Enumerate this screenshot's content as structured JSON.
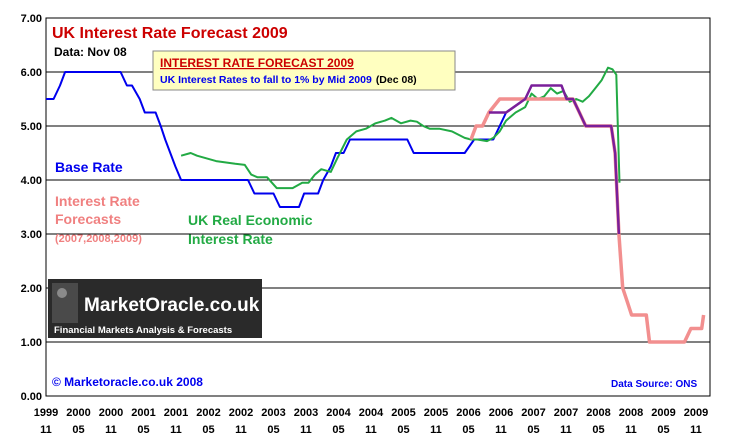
{
  "chart_data": {
    "type": "line",
    "title": "UK Interest Rate Forecast 2009",
    "data_date": "Data: Nov 08",
    "headline_box": {
      "title": "INTEREST RATE FORECAST 2009",
      "line_blue": "UK Interest Rates to fall to 1% by Mid 2009",
      "line_date": "(Dec 08)"
    },
    "ylim": [
      0,
      7
    ],
    "y_ticks": [
      "0.00",
      "1.00",
      "2.00",
      "3.00",
      "4.00",
      "5.00",
      "6.00",
      "7.00"
    ],
    "x_ticks": [
      {
        "year": "1999",
        "month": "11"
      },
      {
        "year": "2000",
        "month": "05"
      },
      {
        "year": "2000",
        "month": "11"
      },
      {
        "year": "2001",
        "month": "05"
      },
      {
        "year": "2001",
        "month": "11"
      },
      {
        "year": "2002",
        "month": "05"
      },
      {
        "year": "2002",
        "month": "11"
      },
      {
        "year": "2003",
        "month": "05"
      },
      {
        "year": "2003",
        "month": "11"
      },
      {
        "year": "2004",
        "month": "05"
      },
      {
        "year": "2004",
        "month": "11"
      },
      {
        "year": "2005",
        "month": "05"
      },
      {
        "year": "2005",
        "month": "11"
      },
      {
        "year": "2006",
        "month": "05"
      },
      {
        "year": "2006",
        "month": "11"
      },
      {
        "year": "2007",
        "month": "05"
      },
      {
        "year": "2007",
        "month": "11"
      },
      {
        "year": "2008",
        "month": "05"
      },
      {
        "year": "2008",
        "month": "11"
      },
      {
        "year": "2009",
        "month": "05"
      },
      {
        "year": "2009",
        "month": "11"
      }
    ],
    "legend": {
      "base_rate": "Base Rate",
      "forecast_l1": "Interest Rate",
      "forecast_l2": "Forecasts",
      "forecast_l3": "(2007,2008,2009)",
      "real_l1": "UK Real Economic",
      "real_l2": "Interest Rate"
    },
    "logo_text": "MarketOracle.co.uk",
    "logo_sub": "Financial Markets Analysis & Forecasts",
    "copyright": "© Marketoracle.co.uk 2008",
    "source": "Data Source: ONS",
    "colors": {
      "base_rate": "#0000ee",
      "forecast": "#f28f8f",
      "forecast_text": "#f08080",
      "real_rate": "#22aa44",
      "actual_overlap": "#7a1f9a",
      "title": "#cc0000",
      "plot_bg": "#ffffff",
      "outer_bg": "#ffffff",
      "headline_bg": "#ffffc0"
    },
    "series": [
      {
        "name": "Base Rate",
        "x": [
          1999.83,
          1999.95,
          2000.05,
          2000.13,
          2000.25,
          2000.45,
          2000.65,
          2000.85,
          2000.92,
          2001.0,
          2001.1,
          2001.18,
          2001.3,
          2001.38,
          2001.55,
          2001.63,
          2001.7,
          2001.78,
          2001.86,
          2001.95,
          2002.5,
          2003.0,
          2003.1,
          2003.4,
          2003.5,
          2003.8,
          2003.88,
          2004.1,
          2004.18,
          2004.3,
          2004.38,
          2004.5,
          2004.6,
          2005.5,
          2005.6,
          2006.4,
          2006.55,
          2006.85,
          2006.95,
          2007.05,
          2007.35,
          2007.45,
          2007.55,
          2007.92,
          2008.0,
          2008.1,
          2008.2,
          2008.3,
          2008.7,
          2008.76,
          2008.82
        ],
        "y": [
          5.5,
          5.5,
          5.75,
          6.0,
          6.0,
          6.0,
          6.0,
          6.0,
          6.0,
          6.0,
          5.75,
          5.75,
          5.5,
          5.25,
          5.25,
          5.0,
          4.75,
          4.5,
          4.25,
          4.0,
          4.0,
          4.0,
          3.75,
          3.75,
          3.5,
          3.5,
          3.75,
          3.75,
          4.0,
          4.25,
          4.5,
          4.5,
          4.75,
          4.75,
          4.5,
          4.5,
          4.75,
          4.75,
          5.0,
          5.25,
          5.5,
          5.75,
          5.75,
          5.75,
          5.5,
          5.5,
          5.25,
          5.0,
          5.0,
          4.5,
          3.0
        ]
      },
      {
        "name": "Interest Rate Forecasts",
        "x": [
          2006.5,
          2006.58,
          2006.68,
          2006.78,
          2006.95,
          2007.05,
          2007.25,
          2007.9,
          2008.1,
          2008.2,
          2008.3,
          2008.7,
          2008.76,
          2008.82,
          2008.88,
          2008.95,
          2009.02,
          2009.1,
          2009.25,
          2009.3,
          2009.4,
          2009.6,
          2009.85,
          2009.95,
          2010.05,
          2010.12,
          2010.15
        ],
        "y": [
          4.75,
          5.0,
          5.0,
          5.25,
          5.5,
          5.5,
          5.5,
          5.5,
          5.5,
          5.25,
          5.0,
          5.0,
          4.5,
          3.0,
          2.0,
          1.75,
          1.5,
          1.5,
          1.5,
          1.0,
          1.0,
          1.0,
          1.0,
          1.25,
          1.25,
          1.25,
          1.5
        ]
      },
      {
        "name": "UK Real Economic Interest Rate",
        "x": [
          2001.95,
          2002.1,
          2002.2,
          2002.5,
          2002.8,
          2002.95,
          2003.05,
          2003.15,
          2003.3,
          2003.45,
          2003.55,
          2003.7,
          2003.85,
          2003.95,
          2004.05,
          2004.15,
          2004.3,
          2004.4,
          2004.55,
          2004.7,
          2004.85,
          2005.0,
          2005.15,
          2005.25,
          2005.4,
          2005.55,
          2005.65,
          2005.75,
          2005.85,
          2006.0,
          2006.2,
          2006.4,
          2006.5,
          2006.6,
          2006.75,
          2006.85,
          2006.95,
          2007.05,
          2007.2,
          2007.35,
          2007.45,
          2007.55,
          2007.65,
          2007.75,
          2007.85,
          2007.95,
          2008.05,
          2008.15,
          2008.25,
          2008.35,
          2008.45,
          2008.55,
          2008.65,
          2008.72,
          2008.78,
          2008.83
        ],
        "y": [
          4.45,
          4.5,
          4.45,
          4.35,
          4.3,
          4.28,
          4.1,
          4.05,
          4.05,
          3.85,
          3.85,
          3.85,
          3.95,
          3.95,
          4.1,
          4.2,
          4.15,
          4.4,
          4.75,
          4.9,
          4.95,
          5.05,
          5.1,
          5.15,
          5.05,
          5.1,
          5.08,
          5.0,
          4.95,
          4.95,
          4.9,
          4.78,
          4.75,
          4.75,
          4.72,
          4.78,
          4.9,
          5.1,
          5.25,
          5.35,
          5.6,
          5.5,
          5.55,
          5.7,
          5.6,
          5.65,
          5.45,
          5.5,
          5.45,
          5.55,
          5.7,
          5.85,
          6.08,
          6.05,
          5.95,
          3.95
        ]
      },
      {
        "name": "Actual vs Forecast Overlap",
        "x": [
          2006.78,
          2006.95,
          2007.05,
          2007.35,
          2007.45,
          2007.55,
          2007.92,
          2008.0,
          2008.1,
          2008.2,
          2008.3,
          2008.7,
          2008.76,
          2008.82
        ],
        "y": [
          5.25,
          5.25,
          5.25,
          5.5,
          5.75,
          5.75,
          5.75,
          5.5,
          5.5,
          5.25,
          5.0,
          5.0,
          4.5,
          3.0
        ]
      }
    ]
  }
}
